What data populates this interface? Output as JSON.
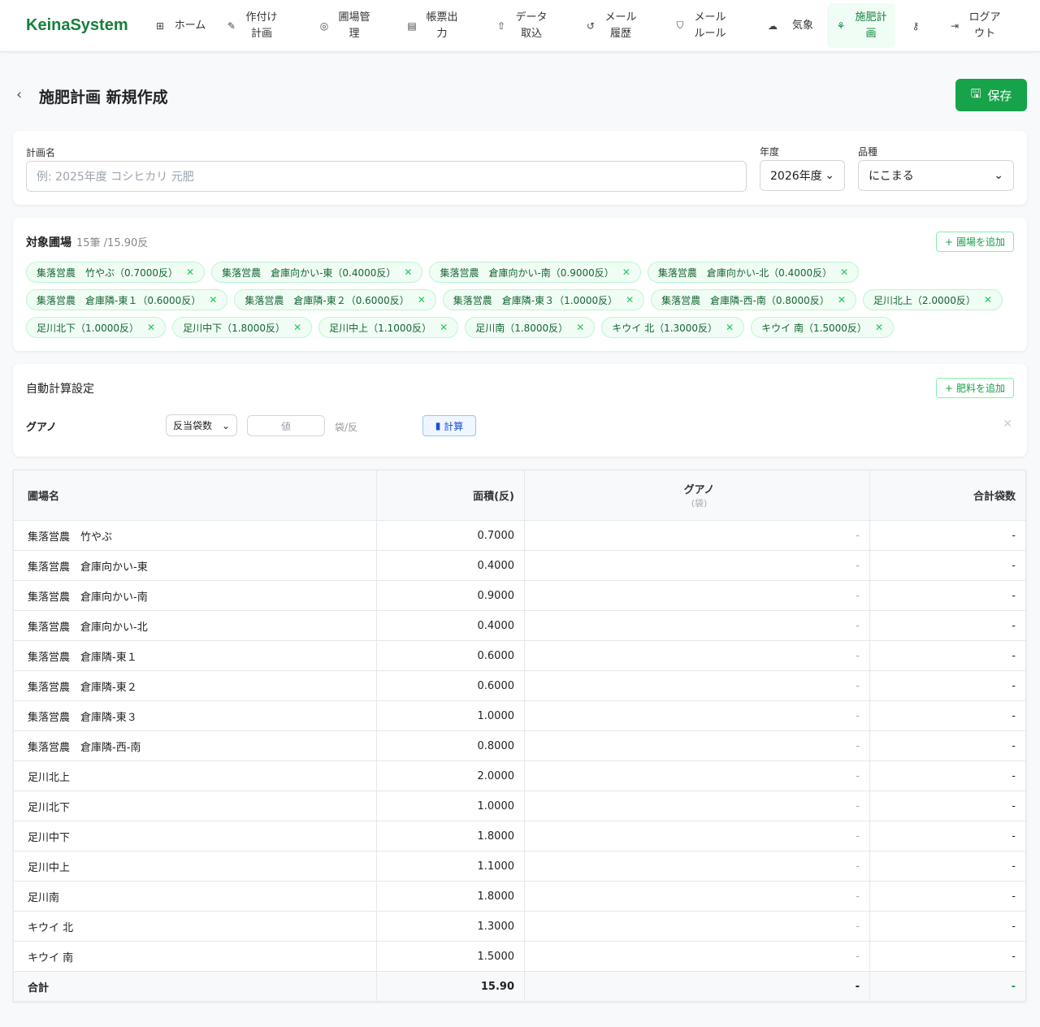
{
  "app": {
    "logo": "KeinaSystem"
  },
  "nav": [
    {
      "label": "ホーム",
      "icon": "grid-icon"
    },
    {
      "label": "作付け計画",
      "icon": "wheat-icon"
    },
    {
      "label": "圃場管理",
      "icon": "map-pin-icon"
    },
    {
      "label": "帳票出力",
      "icon": "file-icon"
    },
    {
      "label": "データ取込",
      "icon": "upload-icon"
    },
    {
      "label": "メール履歴",
      "icon": "history-icon"
    },
    {
      "label": "メールルール",
      "icon": "shield-icon"
    },
    {
      "label": "気象",
      "icon": "cloud-icon"
    },
    {
      "label": "施肥計画",
      "icon": "sprout-icon",
      "active": true
    },
    {
      "label": "",
      "icon": "key-icon"
    },
    {
      "label": "ログアウト",
      "icon": "logout-icon"
    }
  ],
  "page": {
    "title": "施肥計画 新規作成",
    "save_label": "保存"
  },
  "form": {
    "name_label": "計画名",
    "name_placeholder": "例: 2025年度 コシヒカリ 元肥",
    "year_label": "年度",
    "year_value": "2026年度",
    "variety_label": "品種",
    "variety_value": "にこまる"
  },
  "fields": {
    "title": "対象圃場",
    "summary": "15筆 /15.90反",
    "add_label": "圃場を追加",
    "chips": [
      "集落営農　竹やぶ（0.7000反）",
      "集落営農　倉庫向かい-東（0.4000反）",
      "集落営農　倉庫向かい-南（0.9000反）",
      "集落営農　倉庫向かい-北（0.4000反）",
      "集落営農　倉庫隣-東１（0.6000反）",
      "集落営農　倉庫隣-東２（0.6000反）",
      "集落営農　倉庫隣-東３（1.0000反）",
      "集落営農　倉庫隣-西-南（0.8000反）",
      "足川北上（2.0000反）",
      "足川北下（1.0000反）",
      "足川中下（1.8000反）",
      "足川中上（1.1000反）",
      "足川南（1.8000反）",
      "キウイ 北（1.3000反）",
      "キウイ 南（1.5000反）"
    ]
  },
  "auto": {
    "title": "自動計算設定",
    "add_label": "肥料を追加",
    "fertilizer": "グアノ",
    "mode": "反当袋数",
    "value_placeholder": "値",
    "unit": "袋/反",
    "calc_label": "計算"
  },
  "table": {
    "headers": {
      "name": "圃場名",
      "area": "面積(反)",
      "fert": "グアノ",
      "fert_unit": "(袋)",
      "total": "合計袋数"
    },
    "rows": [
      [
        "集落営農　竹やぶ",
        "0.7000",
        "-",
        "-"
      ],
      [
        "集落営農　倉庫向かい-東",
        "0.4000",
        "-",
        "-"
      ],
      [
        "集落営農　倉庫向かい-南",
        "0.9000",
        "-",
        "-"
      ],
      [
        "集落営農　倉庫向かい-北",
        "0.4000",
        "-",
        "-"
      ],
      [
        "集落営農　倉庫隣-東１",
        "0.6000",
        "-",
        "-"
      ],
      [
        "集落営農　倉庫隣-東２",
        "0.6000",
        "-",
        "-"
      ],
      [
        "集落営農　倉庫隣-東３",
        "1.0000",
        "-",
        "-"
      ],
      [
        "集落営農　倉庫隣-西-南",
        "0.8000",
        "-",
        "-"
      ],
      [
        "足川北上",
        "2.0000",
        "-",
        "-"
      ],
      [
        "足川北下",
        "1.0000",
        "-",
        "-"
      ],
      [
        "足川中下",
        "1.8000",
        "-",
        "-"
      ],
      [
        "足川中上",
        "1.1000",
        "-",
        "-"
      ],
      [
        "足川南",
        "1.8000",
        "-",
        "-"
      ],
      [
        "キウイ 北",
        "1.3000",
        "-",
        "-"
      ],
      [
        "キウイ 南",
        "1.5000",
        "-",
        "-"
      ]
    ],
    "total": [
      "合計",
      "15.90",
      "-",
      "-"
    ]
  }
}
